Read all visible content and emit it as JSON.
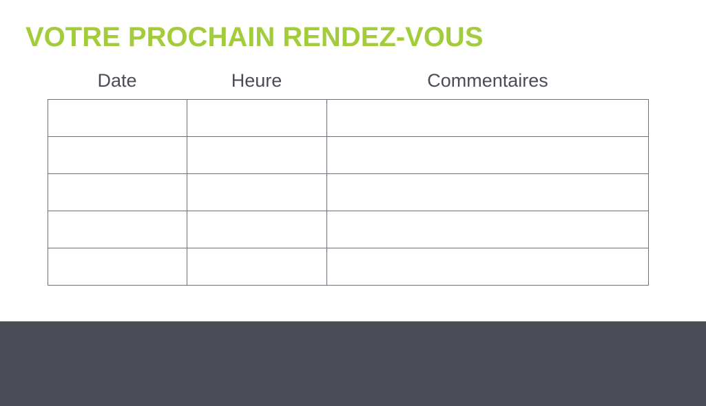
{
  "title": "VOTRE PROCHAIN RENDEZ-VOUS",
  "columns": [
    "Date",
    "Heure",
    "Commentaires"
  ],
  "rows": [
    [
      "",
      "",
      ""
    ],
    [
      "",
      "",
      ""
    ],
    [
      "",
      "",
      ""
    ],
    [
      "",
      "",
      ""
    ],
    [
      "",
      "",
      ""
    ]
  ],
  "colors": {
    "accent": "#a3cc3a",
    "text": "#4a4d56",
    "footer_band": "#4a4d56"
  }
}
